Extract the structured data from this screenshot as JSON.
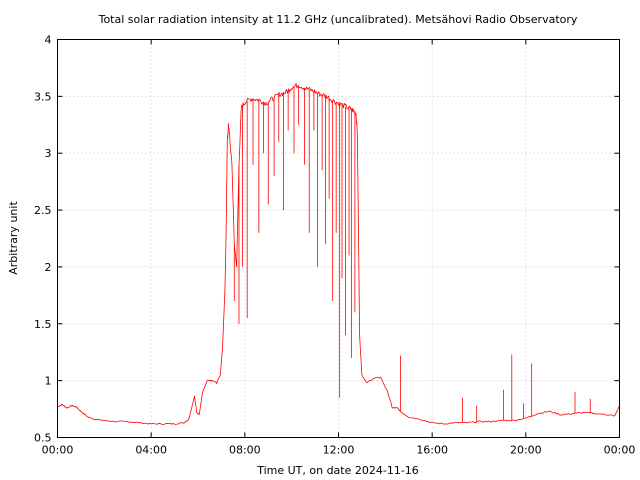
{
  "chart_data": {
    "type": "line",
    "title": "Total solar radiation intensity at 11.2 GHz (uncalibrated). Metsähovi Radio Observatory",
    "xlabel": "Time UT, on date 2024-11-16",
    "ylabel": "Arbitrary unit",
    "xlim": [
      0,
      24
    ],
    "ylim": [
      0.5,
      4
    ],
    "x_ticks": [
      0,
      4,
      8,
      12,
      16,
      20,
      24
    ],
    "x_tick_labels": [
      "00:00",
      "04:00",
      "08:00",
      "12:00",
      "16:00",
      "20:00",
      "00:00"
    ],
    "y_ticks": [
      0.5,
      1,
      1.5,
      2,
      2.5,
      3,
      3.5,
      4
    ],
    "y_tick_labels": [
      "0.5",
      "1",
      "1.5",
      "2",
      "2.5",
      "3",
      "3.5",
      "4"
    ],
    "grid": true,
    "color": "#ff0000",
    "series": [
      {
        "x": [
          0.0,
          0.2,
          0.4,
          0.6,
          0.8,
          1.0,
          1.3,
          1.6,
          2.0,
          2.5,
          3.0,
          3.5,
          4.0,
          4.5,
          5.0,
          5.4,
          5.6,
          5.75,
          5.85,
          5.95,
          6.05,
          6.2,
          6.4,
          6.6,
          6.8,
          6.95,
          7.05,
          7.1,
          7.15,
          7.2,
          7.25,
          7.3,
          7.35,
          7.45,
          7.55,
          7.65,
          7.75,
          7.85,
          8.0,
          8.3,
          8.6,
          8.9,
          9.2,
          9.5,
          9.8,
          10.0,
          10.3,
          10.6,
          10.9,
          11.2,
          11.5,
          11.8,
          12.1,
          12.4,
          12.6,
          12.75,
          12.8,
          12.85,
          12.9,
          13.0,
          13.2,
          13.5,
          13.8,
          14.1,
          14.3,
          14.5,
          14.7,
          15.0,
          15.5,
          16.0,
          16.5,
          17.0,
          17.5,
          18.0,
          18.5,
          19.0,
          19.5,
          20.0,
          20.5,
          21.0,
          21.5,
          22.0,
          22.5,
          23.0,
          23.5,
          23.8,
          24.0
        ],
        "y": [
          0.77,
          0.79,
          0.76,
          0.78,
          0.77,
          0.73,
          0.68,
          0.66,
          0.65,
          0.64,
          0.64,
          0.63,
          0.62,
          0.62,
          0.62,
          0.63,
          0.66,
          0.78,
          0.86,
          0.72,
          0.7,
          0.9,
          1.0,
          1.0,
          0.98,
          1.05,
          1.3,
          1.55,
          1.8,
          2.3,
          3.1,
          3.25,
          3.15,
          2.9,
          2.2,
          2.0,
          2.9,
          3.4,
          3.45,
          3.48,
          3.47,
          3.44,
          3.48,
          3.52,
          3.54,
          3.58,
          3.6,
          3.57,
          3.55,
          3.52,
          3.5,
          3.46,
          3.43,
          3.4,
          3.38,
          3.35,
          3.2,
          2.4,
          1.4,
          1.05,
          0.98,
          1.02,
          1.03,
          0.9,
          0.76,
          0.76,
          0.72,
          0.68,
          0.66,
          0.63,
          0.62,
          0.63,
          0.63,
          0.64,
          0.64,
          0.65,
          0.65,
          0.67,
          0.71,
          0.73,
          0.7,
          0.71,
          0.72,
          0.71,
          0.7,
          0.69,
          0.78
        ]
      }
    ],
    "spikes": [
      {
        "x": 7.55,
        "y": 1.7
      },
      {
        "x": 7.75,
        "y": 1.5
      },
      {
        "x": 7.9,
        "y": 2.0
      },
      {
        "x": 8.1,
        "y": 1.55
      },
      {
        "x": 8.35,
        "y": 2.9
      },
      {
        "x": 8.6,
        "y": 2.3
      },
      {
        "x": 8.8,
        "y": 3.0
      },
      {
        "x": 9.0,
        "y": 2.55
      },
      {
        "x": 9.25,
        "y": 2.8
      },
      {
        "x": 9.45,
        "y": 3.1
      },
      {
        "x": 9.65,
        "y": 2.5
      },
      {
        "x": 9.85,
        "y": 3.2
      },
      {
        "x": 10.1,
        "y": 3.0
      },
      {
        "x": 10.3,
        "y": 3.25
      },
      {
        "x": 10.55,
        "y": 2.9
      },
      {
        "x": 10.75,
        "y": 2.3
      },
      {
        "x": 10.95,
        "y": 3.2
      },
      {
        "x": 11.1,
        "y": 2.0
      },
      {
        "x": 11.3,
        "y": 2.85
      },
      {
        "x": 11.45,
        "y": 2.2
      },
      {
        "x": 11.6,
        "y": 2.6
      },
      {
        "x": 11.75,
        "y": 1.7
      },
      {
        "x": 11.9,
        "y": 2.3
      },
      {
        "x": 12.05,
        "y": 0.85
      },
      {
        "x": 12.15,
        "y": 1.9
      },
      {
        "x": 12.3,
        "y": 1.4
      },
      {
        "x": 12.45,
        "y": 2.1
      },
      {
        "x": 12.55,
        "y": 1.2
      },
      {
        "x": 12.7,
        "y": 1.6
      },
      {
        "x": 14.65,
        "y": 1.22
      },
      {
        "x": 17.3,
        "y": 0.85
      },
      {
        "x": 17.9,
        "y": 0.78
      },
      {
        "x": 19.05,
        "y": 0.92
      },
      {
        "x": 19.4,
        "y": 1.23
      },
      {
        "x": 19.9,
        "y": 0.8
      },
      {
        "x": 20.25,
        "y": 1.15
      },
      {
        "x": 22.1,
        "y": 0.9
      },
      {
        "x": 22.75,
        "y": 0.84
      }
    ]
  }
}
